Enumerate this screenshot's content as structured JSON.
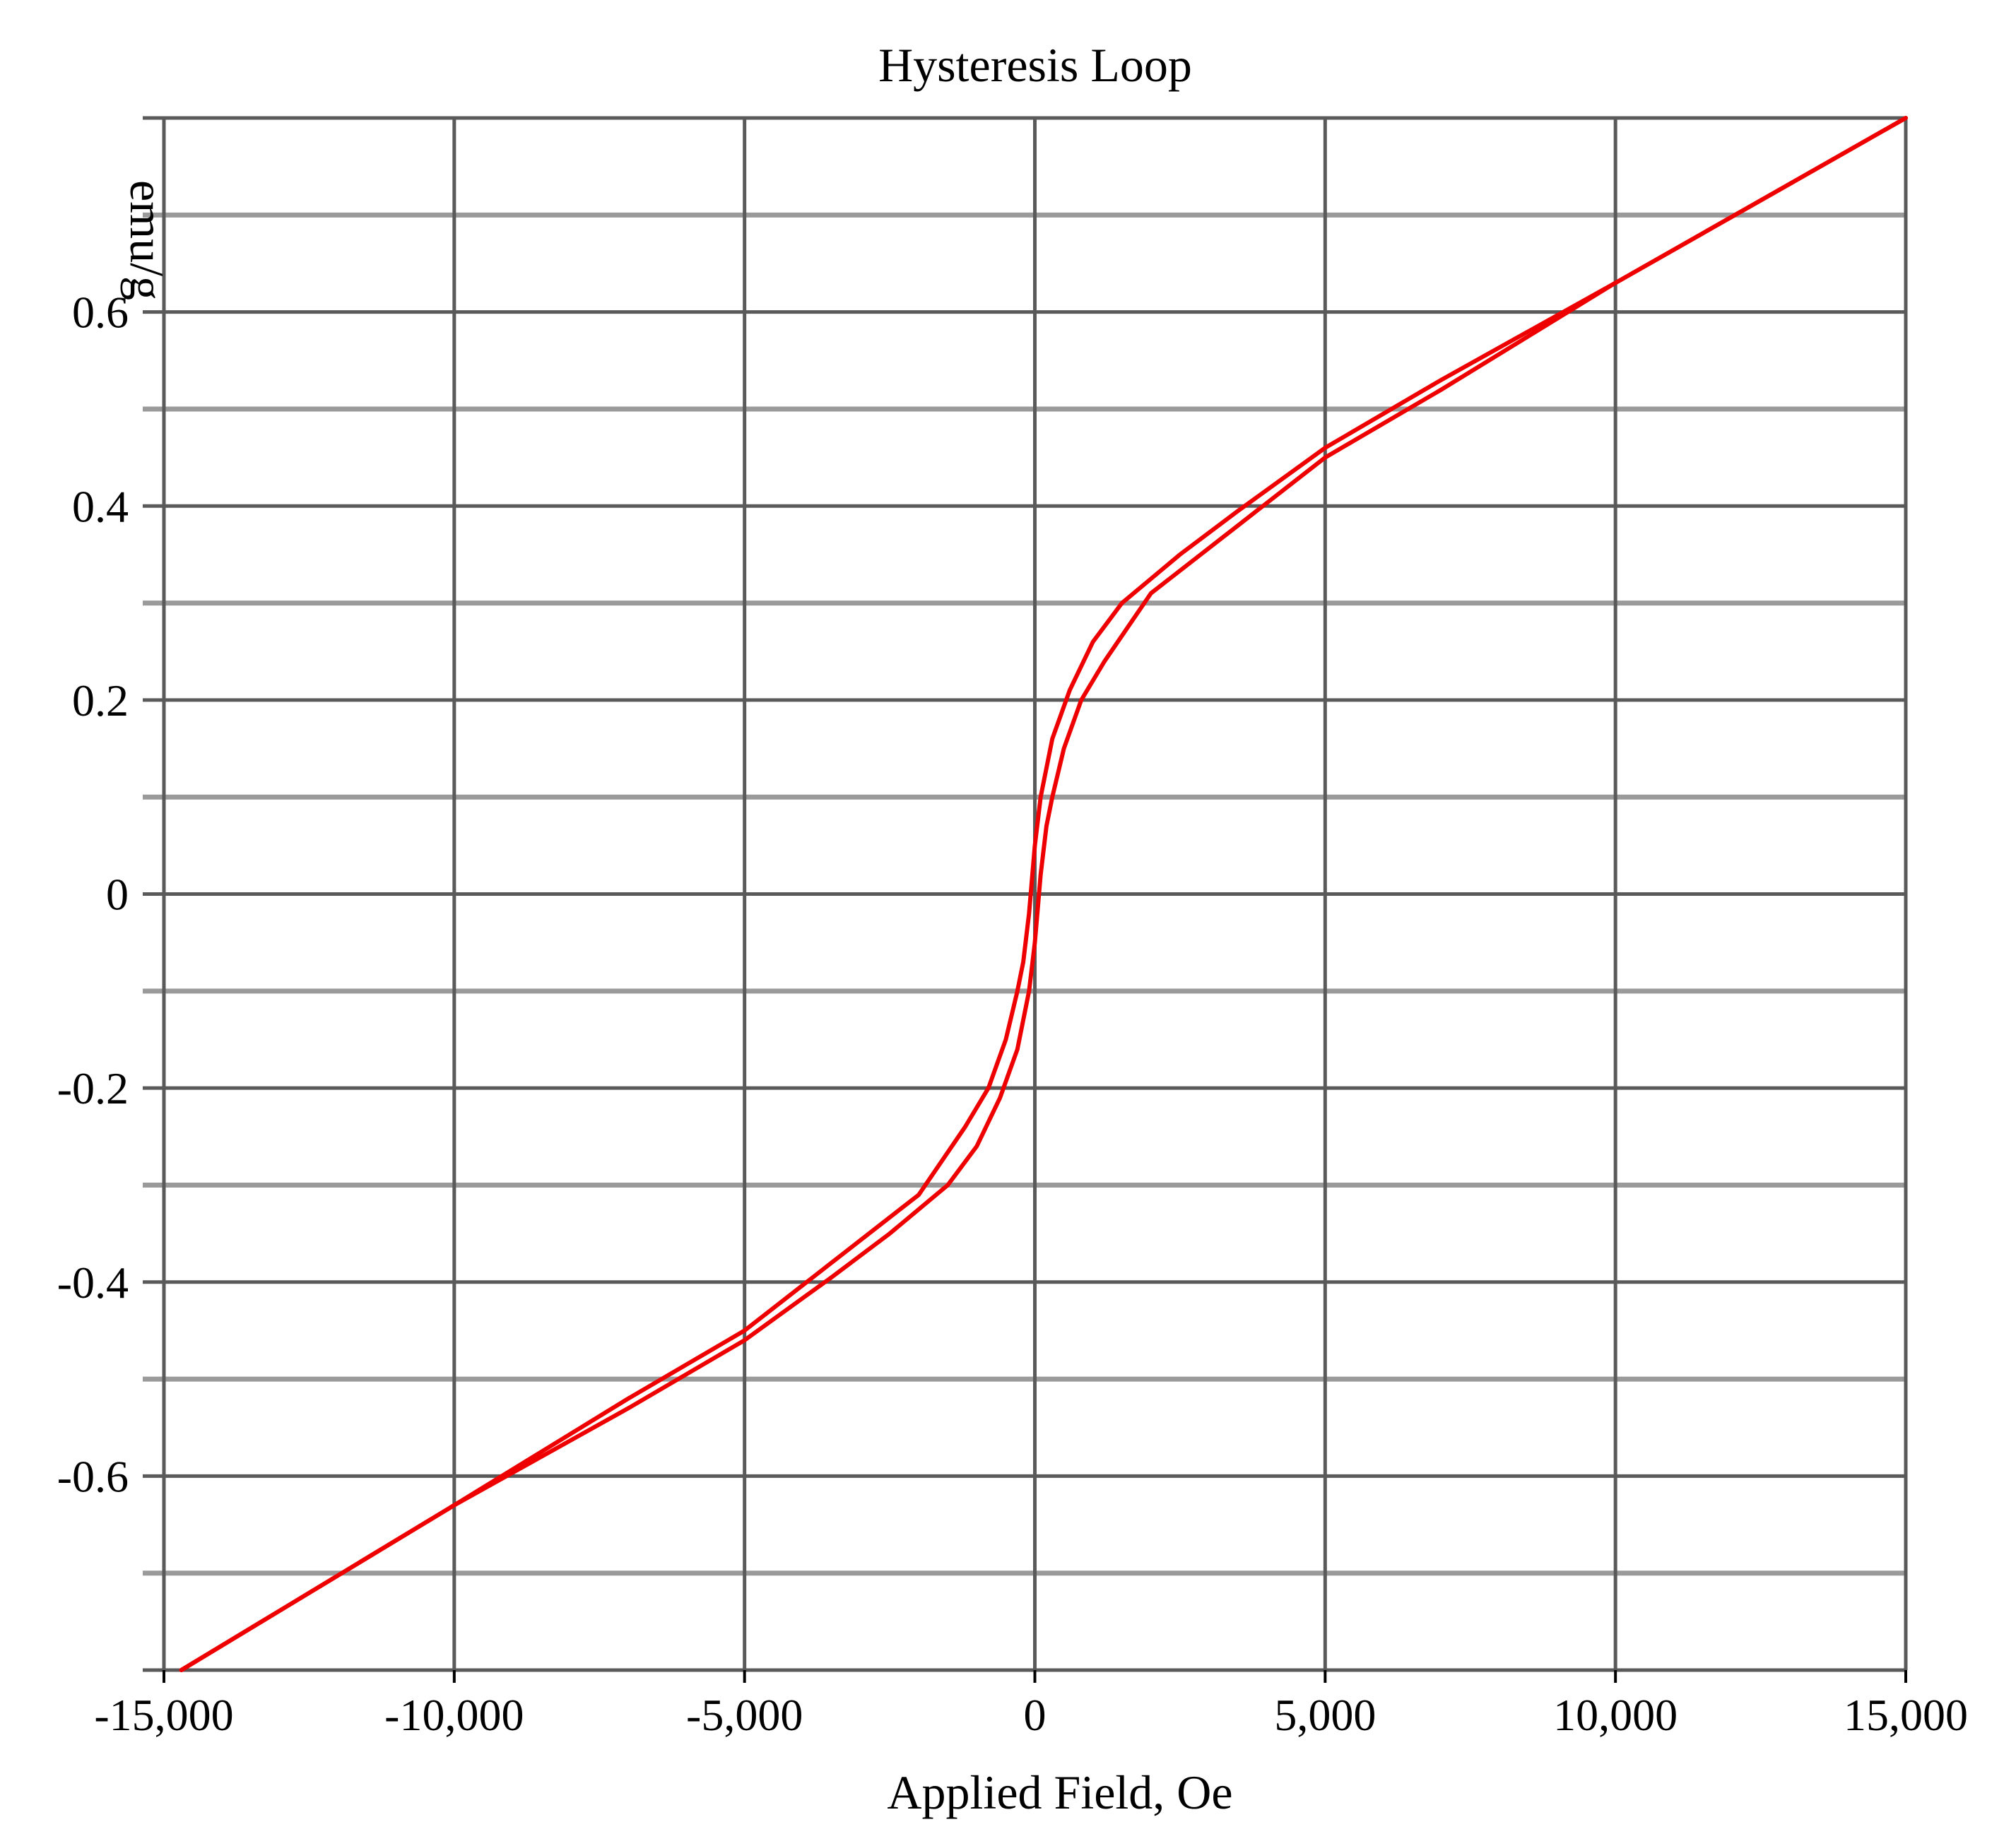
{
  "chart_data": {
    "type": "line",
    "title": "Hysteresis Loop",
    "xlabel": "Applied Field, Oe",
    "ylabel": "emu/g",
    "xlim": [
      -15000,
      15000
    ],
    "ylim": [
      -0.8,
      0.8
    ],
    "grid": true,
    "legend": "none",
    "line_color": "#ee0000",
    "x_ticks": [
      -15000,
      -10000,
      -5000,
      0,
      5000,
      10000,
      15000
    ],
    "x_tick_labels": [
      "-15,000",
      "-10,000",
      "-5,000",
      "0",
      "5,000",
      "10,000",
      "15,000"
    ],
    "y_ticks": [
      0.6,
      0.4,
      0.2,
      0,
      -0.2,
      -0.4,
      -0.6
    ],
    "y_tick_labels": [
      "0.6",
      "0.4",
      "0.2",
      "0",
      "-0.2",
      "-0.4",
      "-0.6"
    ],
    "y_gridlines": [
      0.7,
      0.5,
      0.3,
      0.1,
      -0.1,
      -0.3,
      -0.5,
      -0.7
    ],
    "series": [
      {
        "x": [
          15000,
          10000,
          7000,
          5000,
          3500,
          2500,
          1500,
          1000,
          600,
          300,
          100,
          0,
          -100,
          -200,
          -300,
          -500,
          -800,
          -1200,
          -2000,
          -3500,
          -5000,
          -7000,
          -10000,
          -14700
        ],
        "y": [
          0.8,
          0.63,
          0.53,
          0.46,
          0.395,
          0.35,
          0.3,
          0.26,
          0.21,
          0.16,
          0.1,
          0.05,
          -0.02,
          -0.07,
          -0.1,
          -0.15,
          -0.2,
          -0.24,
          -0.31,
          -0.38,
          -0.45,
          -0.52,
          -0.63,
          -0.8
        ]
      },
      {
        "x": [
          -14700,
          -10000,
          -7000,
          -5000,
          -3500,
          -2500,
          -1500,
          -1000,
          -600,
          -300,
          -100,
          0,
          100,
          200,
          300,
          500,
          800,
          1200,
          2000,
          3500,
          5000,
          7000,
          10000,
          15000
        ],
        "y": [
          -0.8,
          -0.63,
          -0.53,
          -0.46,
          -0.395,
          -0.35,
          -0.3,
          -0.26,
          -0.21,
          -0.16,
          -0.1,
          -0.05,
          0.02,
          0.07,
          0.1,
          0.15,
          0.2,
          0.24,
          0.31,
          0.38,
          0.45,
          0.52,
          0.63,
          0.8
        ]
      }
    ]
  }
}
